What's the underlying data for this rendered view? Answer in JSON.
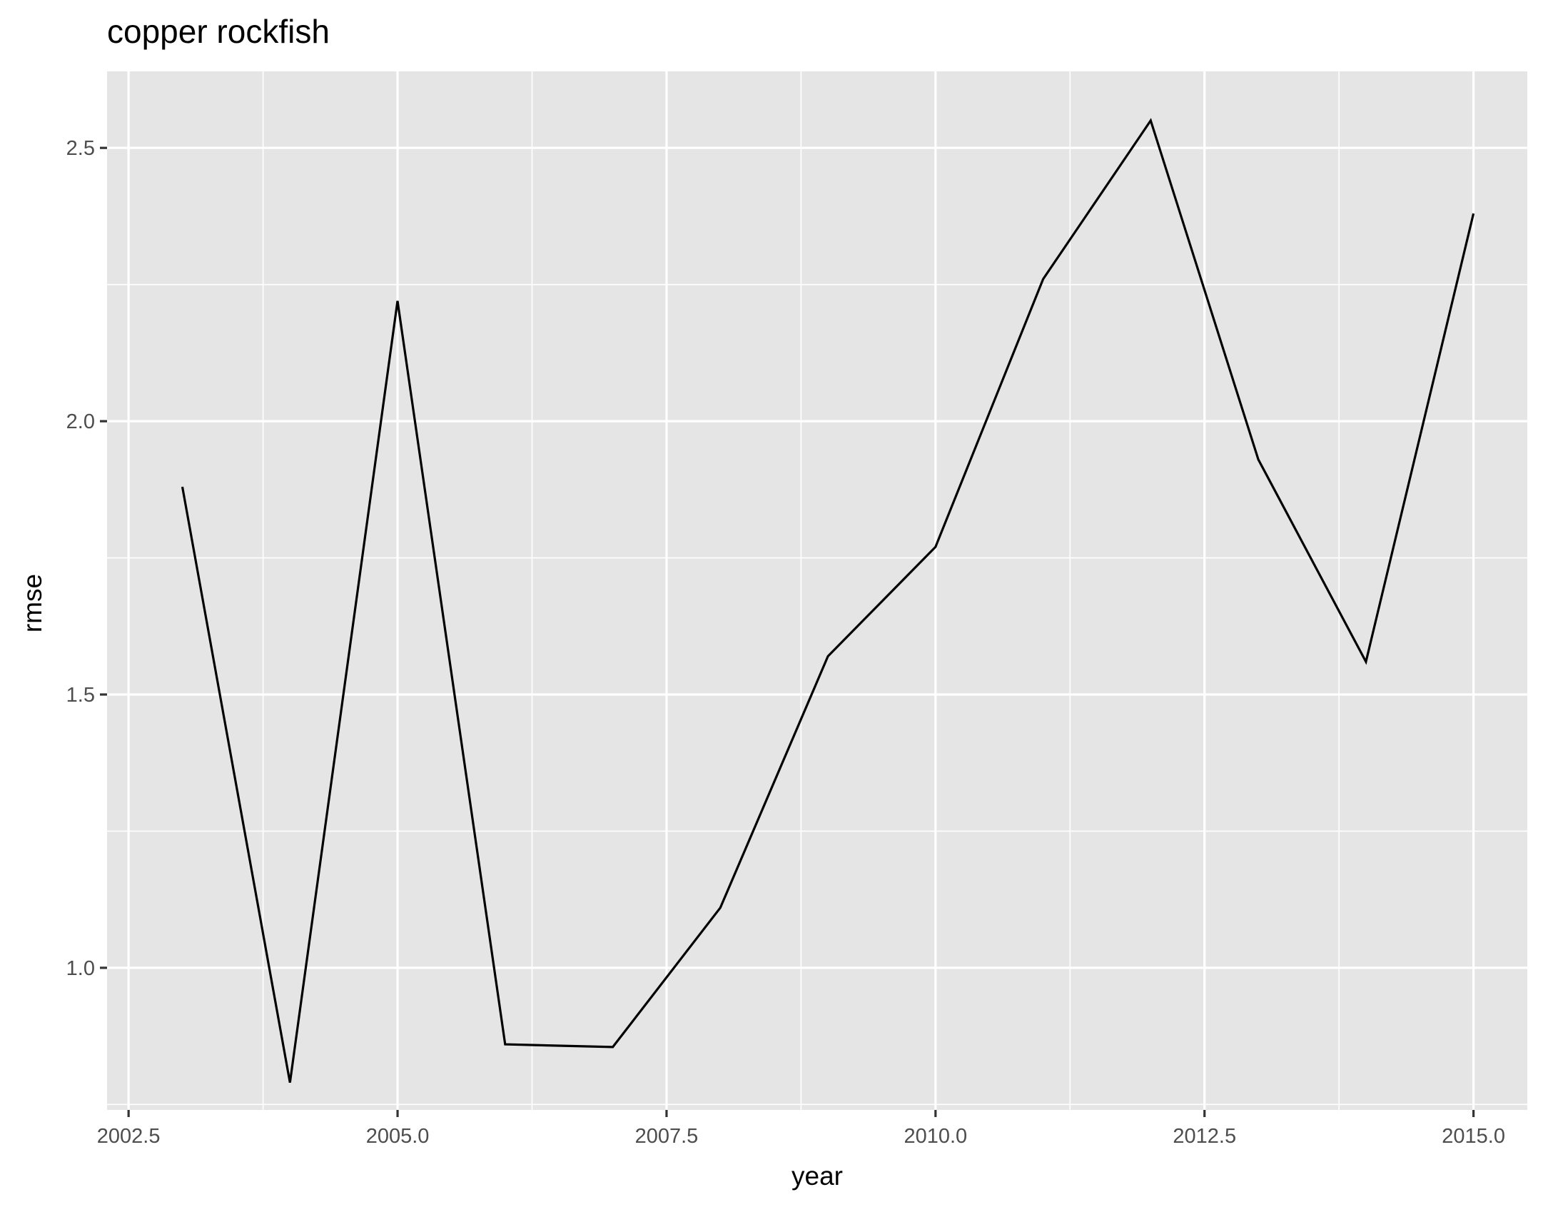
{
  "chart_data": {
    "type": "line",
    "title": "copper rockfish",
    "xlabel": "year",
    "ylabel": "rmse",
    "xlim": [
      2002.3,
      2015.5
    ],
    "ylim": [
      0.74,
      2.64
    ],
    "x_major_ticks": [
      2002.5,
      2005.0,
      2007.5,
      2010.0,
      2012.5,
      2015.0
    ],
    "x_minor_ticks": [
      2003.75,
      2006.25,
      2008.75,
      2011.25,
      2013.75
    ],
    "y_major_ticks": [
      1.0,
      1.5,
      2.0,
      2.5
    ],
    "y_minor_ticks": [
      0.75,
      1.25,
      1.75,
      2.25
    ],
    "x_tick_labels": [
      "2002.5",
      "2005.0",
      "2007.5",
      "2010.0",
      "2012.5",
      "2015.0"
    ],
    "y_tick_labels": [
      "1.0",
      "1.5",
      "2.0",
      "2.5"
    ],
    "grid": true,
    "legend": "none",
    "colors": {
      "panel": "#e5e5e5",
      "grid": "#ffffff",
      "line": "#000000",
      "tick_text": "#4d4d4d"
    },
    "series": [
      {
        "x": [
          2003,
          2004,
          2005,
          2006,
          2007,
          2008,
          2009,
          2010,
          2011,
          2012,
          2013,
          2014,
          2015
        ],
        "values": [
          1.88,
          0.79,
          2.22,
          0.86,
          0.855,
          1.11,
          1.57,
          1.77,
          2.26,
          2.55,
          1.93,
          1.56,
          2.38
        ]
      }
    ]
  }
}
